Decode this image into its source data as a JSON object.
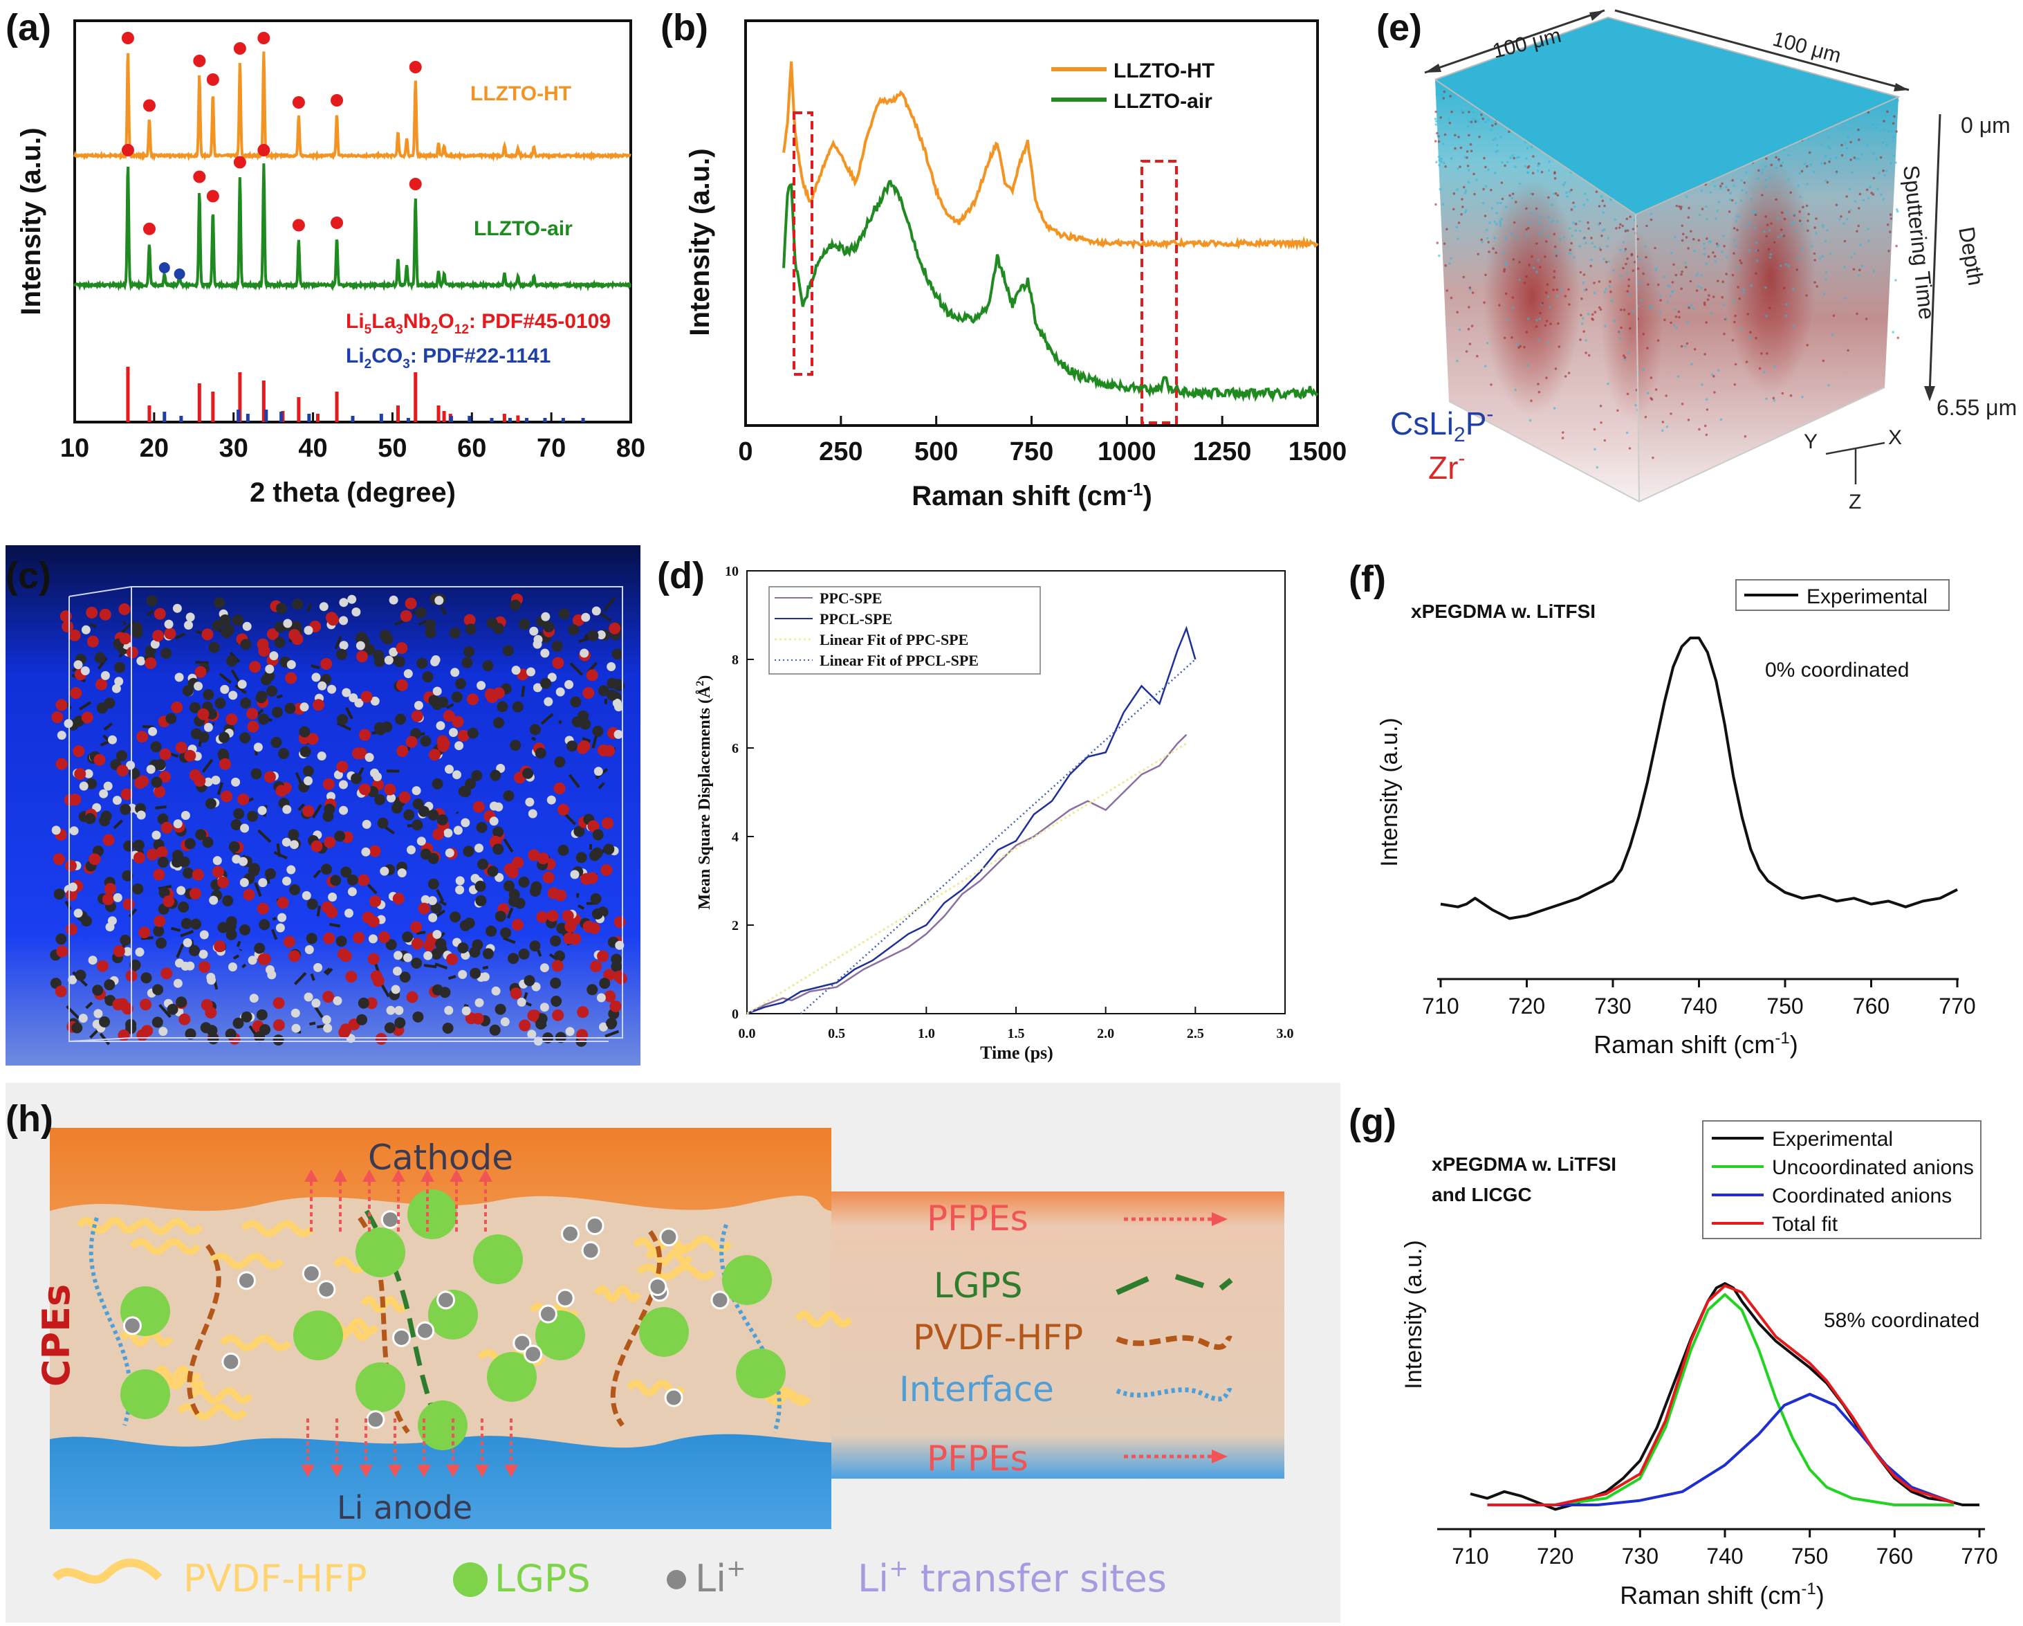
{
  "colors": {
    "orange": "#f39422",
    "green": "#1f8a1f",
    "red": "#e41a1c",
    "blue": "#1f3fa8",
    "black": "#111111",
    "cyan": "#35b8d8",
    "darkred": "#a32828",
    "lime": "#22d322",
    "navy": "#1f2f9a",
    "purple": "#8a6fa0"
  },
  "panels": {
    "a": {
      "label": "(a)",
      "series": [
        "LLZTO-HT",
        "LLZTO-air"
      ],
      "legend": [
        "Li5La3Nb2O12:  PDF#45-0109",
        "Li2CO3: PDF#22-1141"
      ],
      "ref_phase1": {
        "a": "Li",
        "b": "5",
        "c": "La",
        "d": "3",
        "e": "Nb",
        "f": "2",
        "g": "O",
        "h": "12",
        "i": ":  PDF#45-0109"
      },
      "ref_phase2": {
        "a": "Li",
        "b": "2",
        "c": "CO",
        "d": "3",
        "e": ": PDF#22-1141"
      }
    },
    "b": {
      "label": "(b)",
      "legend": [
        "LLZTO-HT",
        "LLZTO-air"
      ]
    },
    "c": {
      "label": "(c)"
    },
    "d": {
      "label": "(d)",
      "legend": [
        "PPC-SPE",
        "PPCL-SPE",
        "Linear Fit of PPC-SPE",
        "Linear Fit of PPCL-SPE"
      ]
    },
    "e": {
      "label": "(e)",
      "dim1": "100 μm",
      "dim2": "100 μm",
      "depth_top": "0 μm",
      "depth_bottom": "6.55 μm",
      "axis_depth": "Depth",
      "axis_sputter": "Sputtering Time",
      "species1": {
        "a": "CsLi",
        "b": "2",
        "c": "P",
        "d": "-"
      },
      "species2": {
        "a": "Zr",
        "b": "-"
      },
      "axes": {
        "x": "X",
        "y": "Y",
        "z": "Z"
      }
    },
    "f": {
      "label": "(f)",
      "title": "xPEGDMA w. LiTFSI",
      "annotation": "0% coordinated",
      "legend": [
        "Experimental"
      ]
    },
    "g": {
      "label": "(g)",
      "title_lines": [
        "xPEGDMA w. LiTFSI",
        "and LICGC"
      ],
      "annotation": "58% coordinated",
      "legend": [
        "Experimental",
        "Uncoordinated anions",
        "Coordinated anions",
        "Total fit"
      ]
    },
    "h": {
      "label": "(h)",
      "cathode": "Cathode",
      "anode": "Li anode",
      "cpes": "CPEs",
      "legend_right": [
        "PFPEs",
        "LGPS",
        "PVDF-HFP",
        "Interface",
        "PFPEs"
      ],
      "legend_bottom": [
        "PVDF-HFP",
        "LGPS",
        "Li",
        "+",
        "Li",
        "+",
        " transfer sites"
      ]
    }
  },
  "chart_data": [
    {
      "panel": "a",
      "type": "line",
      "xlabel": "2 theta (degree)",
      "ylabel": "Intensity (a.u.)",
      "xlim": [
        10,
        80
      ],
      "xticks": [
        10,
        20,
        30,
        40,
        50,
        60,
        70,
        80
      ],
      "series": [
        {
          "name": "LLZTO-HT",
          "peaks": [
            [
              16.7,
              1.0
            ],
            [
              19.4,
              0.35
            ],
            [
              25.7,
              0.78
            ],
            [
              27.4,
              0.6
            ],
            [
              30.8,
              0.9
            ],
            [
              33.8,
              1.0
            ],
            [
              38.2,
              0.38
            ],
            [
              43.0,
              0.4
            ],
            [
              50.7,
              0.22
            ],
            [
              51.8,
              0.17
            ],
            [
              52.9,
              0.72
            ],
            [
              55.8,
              0.12
            ],
            [
              56.5,
              0.1
            ],
            [
              64.1,
              0.1
            ],
            [
              65.8,
              0.08
            ],
            [
              67.8,
              0.08
            ]
          ]
        },
        {
          "name": "LLZTO-air",
          "peaks": [
            [
              16.7,
              1.0
            ],
            [
              19.4,
              0.35
            ],
            [
              21.3,
              0.1
            ],
            [
              23.2,
              0.08
            ],
            [
              25.7,
              0.78
            ],
            [
              27.4,
              0.62
            ],
            [
              30.8,
              0.9
            ],
            [
              33.8,
              1.0
            ],
            [
              38.2,
              0.38
            ],
            [
              43.0,
              0.4
            ],
            [
              50.7,
              0.22
            ],
            [
              51.8,
              0.17
            ],
            [
              52.9,
              0.72
            ],
            [
              55.8,
              0.12
            ],
            [
              56.5,
              0.1
            ],
            [
              64.1,
              0.1
            ],
            [
              65.8,
              0.08
            ],
            [
              67.8,
              0.08
            ]
          ]
        }
      ],
      "ref_li5la3nb2o12": [
        [
          16.7,
          1.0
        ],
        [
          19.4,
          0.3
        ],
        [
          25.7,
          0.7
        ],
        [
          27.4,
          0.55
        ],
        [
          30.8,
          0.9
        ],
        [
          33.8,
          0.75
        ],
        [
          36.2,
          0.2
        ],
        [
          38.2,
          0.45
        ],
        [
          40.6,
          0.15
        ],
        [
          43.0,
          0.55
        ],
        [
          50.7,
          0.3
        ],
        [
          52.9,
          0.9
        ],
        [
          55.8,
          0.3
        ],
        [
          56.5,
          0.2
        ],
        [
          57.3,
          0.15
        ],
        [
          64.1,
          0.15
        ],
        [
          65.8,
          0.12
        ]
      ],
      "ref_li2co3": [
        [
          21.3,
          0.25
        ],
        [
          23.4,
          0.15
        ],
        [
          30.6,
          0.3
        ],
        [
          31.8,
          0.2
        ],
        [
          34.1,
          0.3
        ],
        [
          36.0,
          0.25
        ],
        [
          39.5,
          0.2
        ],
        [
          45.0,
          0.15
        ],
        [
          48.6,
          0.2
        ],
        [
          52.0,
          0.1
        ],
        [
          57.4,
          0.15
        ],
        [
          59.7,
          0.15
        ],
        [
          62.5,
          0.1
        ],
        [
          64.8,
          0.1
        ],
        [
          66.9,
          0.1
        ],
        [
          69.2,
          0.1
        ],
        [
          71.5,
          0.1
        ],
        [
          74.0,
          0.1
        ]
      ]
    },
    {
      "panel": "b",
      "type": "line",
      "xlabel": "Raman shift (cm-1)",
      "ylabel": "Intensity (a.u.)",
      "xlim": [
        0,
        1500
      ],
      "xticks": [
        0,
        250,
        500,
        750,
        1000,
        1250,
        1500
      ],
      "series": [
        {
          "name": "LLZTO-HT",
          "x": [
            100,
            110,
            120,
            130,
            150,
            170,
            200,
            230,
            260,
            290,
            320,
            350,
            380,
            410,
            440,
            470,
            500,
            530,
            560,
            600,
            640,
            660,
            680,
            700,
            720,
            740,
            760,
            790,
            830,
            880,
            950,
            1050,
            1200,
            1350,
            1500
          ],
          "y": [
            0.68,
            0.75,
            0.9,
            0.72,
            0.6,
            0.55,
            0.63,
            0.7,
            0.65,
            0.6,
            0.72,
            0.8,
            0.8,
            0.82,
            0.76,
            0.68,
            0.58,
            0.52,
            0.5,
            0.55,
            0.66,
            0.7,
            0.6,
            0.58,
            0.65,
            0.7,
            0.56,
            0.49,
            0.47,
            0.46,
            0.45,
            0.45,
            0.45,
            0.45,
            0.45
          ]
        },
        {
          "name": "LLZTO-air",
          "x": [
            100,
            110,
            120,
            130,
            150,
            170,
            200,
            230,
            260,
            290,
            320,
            350,
            380,
            410,
            440,
            470,
            500,
            530,
            560,
            600,
            640,
            660,
            680,
            700,
            720,
            740,
            760,
            790,
            830,
            880,
            950,
            1050,
            1090,
            1100,
            1110,
            1200,
            1350,
            1470,
            1480,
            1490,
            1500
          ],
          "y": [
            0.4,
            0.58,
            0.6,
            0.4,
            0.3,
            0.35,
            0.42,
            0.45,
            0.43,
            0.44,
            0.5,
            0.55,
            0.6,
            0.55,
            0.45,
            0.38,
            0.32,
            0.28,
            0.27,
            0.26,
            0.3,
            0.42,
            0.36,
            0.3,
            0.33,
            0.36,
            0.26,
            0.2,
            0.15,
            0.12,
            0.1,
            0.09,
            0.09,
            0.12,
            0.09,
            0.08,
            0.08,
            0.08,
            0.1,
            0.08,
            0.08
          ]
        }
      ]
    },
    {
      "panel": "d",
      "type": "line",
      "xlabel": "Time (ps)",
      "ylabel": "Mean Square Displacements (Å2)",
      "xlim": [
        0,
        3
      ],
      "ylim": [
        0,
        10
      ],
      "xticks": [
        0.0,
        0.5,
        1.0,
        1.5,
        2.0,
        2.5,
        3.0
      ],
      "yticks": [
        0,
        2,
        4,
        6,
        8,
        10
      ],
      "series": [
        {
          "name": "PPC-SPE",
          "x": [
            0,
            0.1,
            0.2,
            0.25,
            0.35,
            0.5,
            0.65,
            0.8,
            0.9,
            1.0,
            1.1,
            1.2,
            1.3,
            1.4,
            1.5,
            1.6,
            1.7,
            1.8,
            1.9,
            2.0,
            2.1,
            2.2,
            2.3,
            2.4,
            2.45
          ],
          "y": [
            0,
            0.2,
            0.35,
            0.3,
            0.5,
            0.6,
            1.0,
            1.3,
            1.5,
            1.8,
            2.2,
            2.7,
            3.0,
            3.4,
            3.8,
            4.0,
            4.3,
            4.6,
            4.8,
            4.6,
            5.0,
            5.4,
            5.6,
            6.1,
            6.3
          ]
        },
        {
          "name": "PPCL-SPE",
          "x": [
            0,
            0.1,
            0.2,
            0.3,
            0.4,
            0.5,
            0.6,
            0.7,
            0.8,
            0.9,
            1.0,
            1.1,
            1.2,
            1.3,
            1.4,
            1.5,
            1.6,
            1.7,
            1.8,
            1.9,
            2.0,
            2.1,
            2.2,
            2.3,
            2.4,
            2.45,
            2.5
          ],
          "y": [
            0,
            0.15,
            0.25,
            0.5,
            0.6,
            0.7,
            1.0,
            1.2,
            1.5,
            1.8,
            2.0,
            2.5,
            2.8,
            3.2,
            3.7,
            3.9,
            4.5,
            4.8,
            5.4,
            5.8,
            5.9,
            6.8,
            7.4,
            7.0,
            8.2,
            8.7,
            8.0
          ]
        },
        {
          "name": "Linear Fit of PPC-SPE",
          "x": [
            0,
            2.45
          ],
          "y": [
            0,
            6.1
          ]
        },
        {
          "name": "Linear Fit of PPCL-SPE",
          "x": [
            0.3,
            2.5
          ],
          "y": [
            0,
            8.0
          ]
        }
      ]
    },
    {
      "panel": "f",
      "type": "line",
      "xlabel": "Raman shift (cm-1)",
      "ylabel": "Intensity (a.u.)",
      "xlim": [
        710,
        770
      ],
      "xticks": [
        710,
        720,
        730,
        740,
        750,
        760,
        770
      ],
      "series": [
        {
          "name": "Experimental",
          "x": [
            710,
            712,
            713,
            714,
            716,
            718,
            720,
            722,
            724,
            726,
            728,
            730,
            731,
            732,
            733,
            734,
            735,
            736,
            737,
            738,
            739,
            740,
            741,
            742,
            743,
            744,
            745,
            746,
            747,
            748,
            749,
            750,
            752,
            754,
            756,
            758,
            760,
            762,
            764,
            766,
            768,
            770
          ],
          "y": [
            0.08,
            0.07,
            0.08,
            0.1,
            0.06,
            0.03,
            0.04,
            0.06,
            0.08,
            0.1,
            0.13,
            0.16,
            0.2,
            0.28,
            0.38,
            0.5,
            0.64,
            0.78,
            0.9,
            0.97,
            1.0,
            1.0,
            0.95,
            0.85,
            0.7,
            0.52,
            0.38,
            0.27,
            0.2,
            0.16,
            0.14,
            0.12,
            0.1,
            0.11,
            0.09,
            0.1,
            0.08,
            0.09,
            0.07,
            0.09,
            0.1,
            0.13
          ]
        }
      ]
    },
    {
      "panel": "g",
      "type": "line",
      "xlabel": "Raman shift (cm-1)",
      "ylabel": "Intensity (a.u.)",
      "xlim": [
        710,
        770
      ],
      "xticks": [
        710,
        720,
        730,
        740,
        750,
        760,
        770
      ],
      "series": [
        {
          "name": "Experimental",
          "x": [
            710,
            712,
            714,
            716,
            718,
            720,
            722,
            724,
            726,
            728,
            730,
            732,
            734,
            736,
            738,
            739,
            740,
            741,
            742,
            744,
            746,
            748,
            750,
            752,
            754,
            756,
            758,
            760,
            762,
            764,
            766,
            768,
            770
          ],
          "y": [
            0.05,
            0.03,
            0.06,
            0.04,
            0.01,
            -0.02,
            0.0,
            0.03,
            0.06,
            0.12,
            0.2,
            0.35,
            0.55,
            0.75,
            0.92,
            0.98,
            1.0,
            0.98,
            0.92,
            0.82,
            0.74,
            0.68,
            0.62,
            0.55,
            0.45,
            0.33,
            0.22,
            0.12,
            0.06,
            0.03,
            0.02,
            0.0,
            0.0
          ]
        },
        {
          "name": "Uncoordinated anions",
          "x": [
            712,
            720,
            726,
            730,
            733,
            736,
            738,
            740,
            742,
            744,
            746,
            748,
            750,
            752,
            755,
            760,
            767
          ],
          "y": [
            0.0,
            0.0,
            0.03,
            0.12,
            0.35,
            0.7,
            0.88,
            0.95,
            0.88,
            0.7,
            0.48,
            0.3,
            0.16,
            0.08,
            0.03,
            0.0,
            0.0
          ]
        },
        {
          "name": "Coordinated anions",
          "x": [
            712,
            725,
            730,
            735,
            740,
            744,
            747,
            750,
            753,
            756,
            759,
            762,
            767
          ],
          "y": [
            0.0,
            0.0,
            0.02,
            0.06,
            0.18,
            0.32,
            0.45,
            0.5,
            0.45,
            0.32,
            0.18,
            0.08,
            0.01
          ]
        },
        {
          "name": "Total fit",
          "x": [
            712,
            720,
            726,
            730,
            733,
            736,
            738,
            740,
            742,
            744,
            746,
            748,
            750,
            752,
            755,
            758,
            760,
            762,
            767
          ],
          "y": [
            0.0,
            0.0,
            0.05,
            0.14,
            0.38,
            0.74,
            0.92,
            0.99,
            0.96,
            0.86,
            0.76,
            0.7,
            0.64,
            0.56,
            0.4,
            0.22,
            0.13,
            0.07,
            0.01
          ]
        }
      ]
    }
  ]
}
